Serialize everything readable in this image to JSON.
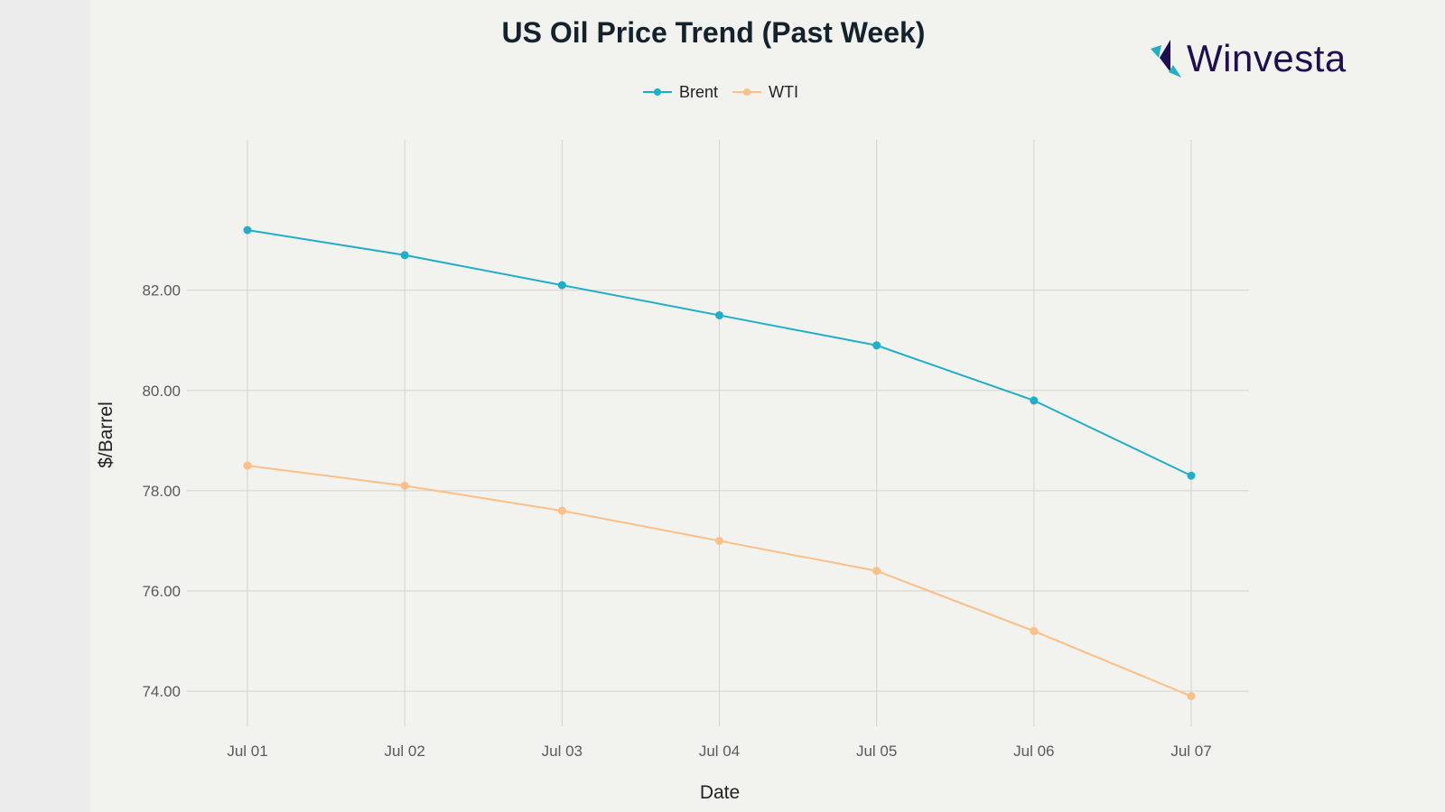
{
  "brand": {
    "name": "Winvesta"
  },
  "chart_data": {
    "type": "line",
    "title": "US Oil Price Trend (Past Week)",
    "xlabel": "Date",
    "ylabel": "$/Barrel",
    "categories": [
      "Jul 01",
      "Jul 02",
      "Jul 03",
      "Jul 04",
      "Jul 05",
      "Jul 06",
      "Jul 07"
    ],
    "series": [
      {
        "name": "Brent",
        "color": "#1fb0c8",
        "values": [
          83.2,
          82.7,
          82.1,
          81.5,
          80.9,
          79.8,
          78.3
        ]
      },
      {
        "name": "WTI",
        "color": "#fbbf87",
        "values": [
          78.5,
          78.1,
          77.6,
          77.0,
          76.4,
          75.2,
          73.9
        ]
      }
    ],
    "yticks": [
      "74.00",
      "76.00",
      "78.00",
      "80.00",
      "82.00"
    ],
    "ylim": [
      73.3,
      85.0
    ],
    "grid": true,
    "legend_position": "top-center"
  }
}
